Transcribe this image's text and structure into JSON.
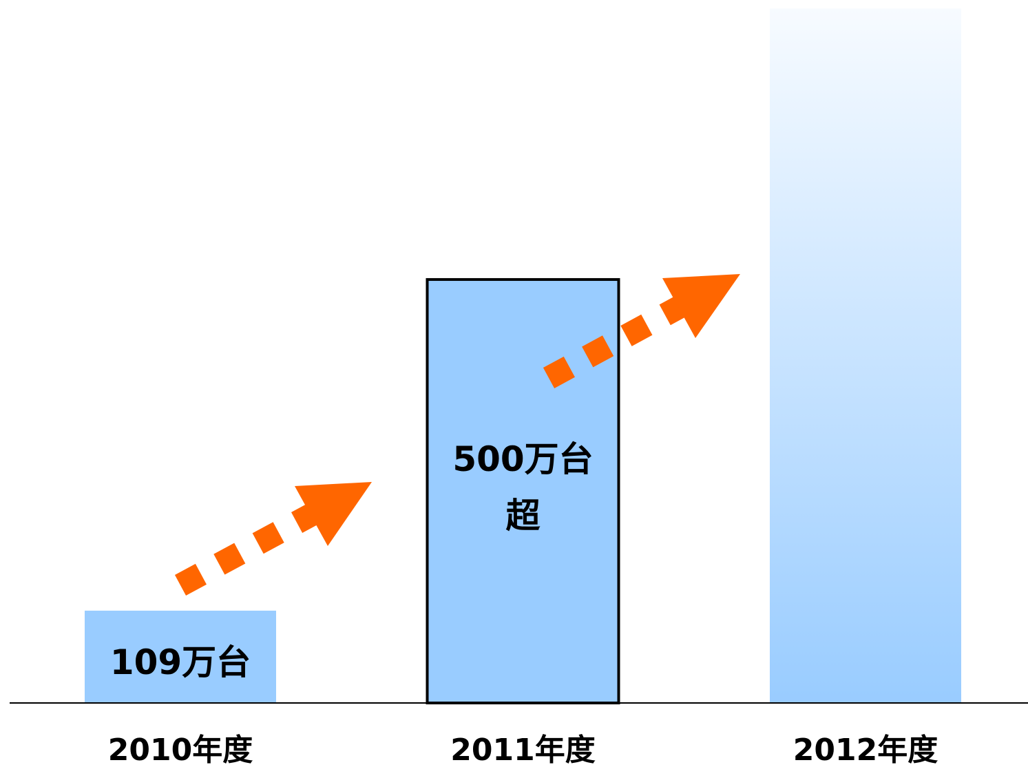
{
  "chart_data": {
    "type": "bar",
    "categories": [
      "2010年度",
      "2011年度",
      "2012年度"
    ],
    "values": [
      109,
      500,
      820
    ],
    "value_labels": [
      "109万台",
      "500万台超",
      null
    ],
    "color": "#99ccff",
    "ylim": [
      0,
      830
    ]
  }
}
